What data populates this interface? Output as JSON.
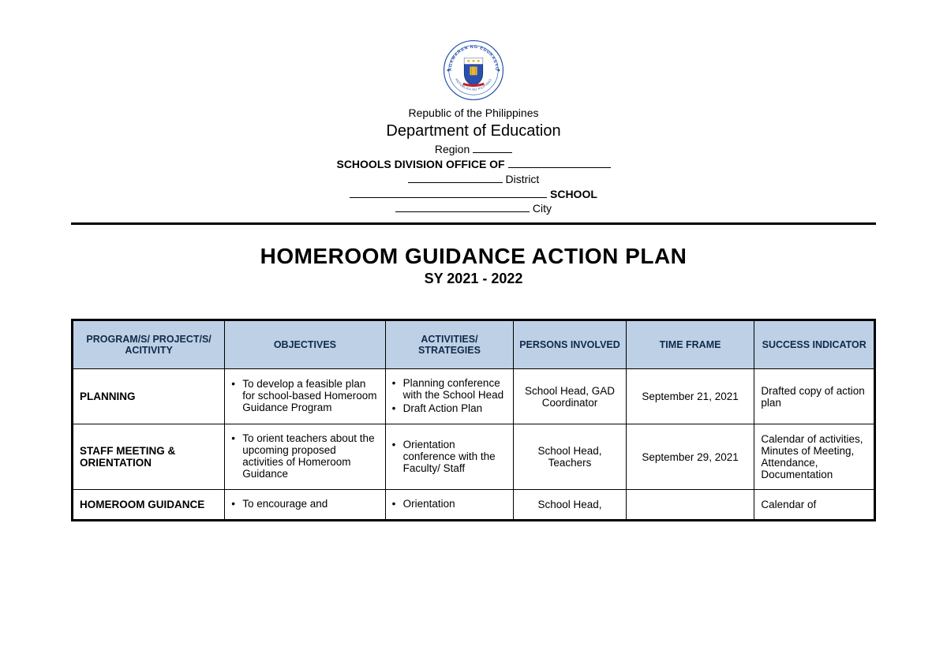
{
  "logo": {
    "outer_text_top": "KAGAWARAN NG EDUKASYON",
    "outer_text_bottom": "REPUBLIKA NG PILIPINAS",
    "ring_color": "#1f4fa8",
    "ring_text_color": "#1f4fa8",
    "shield_blue": "#2a4fb0",
    "shield_gold": "#e2b93c",
    "shield_white": "#ffffff",
    "border_color": "#1f4fa8"
  },
  "header": {
    "republic": "Republic of the Philippines",
    "department": "Department of Education",
    "region_label": "Region",
    "division_label": "SCHOOLS DIVISION OFFICE OF",
    "district_label": "District",
    "school_label": "SCHOOL",
    "city_label": "City",
    "blank_widths": {
      "region": 50,
      "division": 130,
      "district_prefix": 120,
      "school_prefix": 250,
      "city_prefix": 170
    }
  },
  "title": "HOMEROOM GUIDANCE ACTION PLAN",
  "subtitle": "SY 2021 - 2022",
  "table": {
    "header_bg": "#bdd0e6",
    "header_text_color": "#102a4a",
    "columns": [
      "PROGRAM/S/ PROJECT/S/ ACITIVITY",
      "OBJECTIVES",
      "ACTIVITIES/ STRATEGIES",
      "PERSONS INVOLVED",
      "TIME FRAME",
      "SUCCESS INDICATOR"
    ],
    "rows": [
      {
        "program": "PLANNING",
        "objectives": [
          "To develop a feasible plan for school-based Homeroom Guidance  Program"
        ],
        "activities": [
          "Planning conference with the School Head",
          "Draft Action Plan"
        ],
        "persons": "School Head, GAD Coordinator",
        "timeframe": "September 21, 2021",
        "success": "Drafted copy of action plan"
      },
      {
        "program": "STAFF MEETING & ORIENTATION",
        "objectives": [
          "To orient teachers about the upcoming proposed activities of Homeroom Guidance"
        ],
        "activities": [
          "Orientation conference with the Faculty/ Staff"
        ],
        "persons": "School Head, Teachers",
        "timeframe": "September 29, 2021",
        "success": "Calendar of activities, Minutes of Meeting, Attendance, Documentation"
      },
      {
        "program": "HOMEROOM GUIDANCE",
        "objectives": [
          "To encourage and"
        ],
        "activities": [
          "Orientation"
        ],
        "persons": "School Head,",
        "timeframe": "",
        "success": "Calendar of"
      }
    ]
  }
}
